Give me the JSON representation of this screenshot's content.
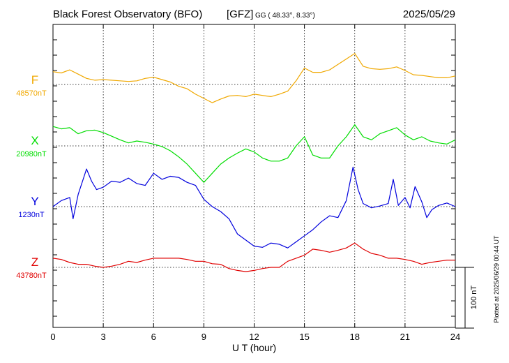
{
  "header": {
    "title": "Black Forest Observatory (BFO)",
    "agency": "[GFZ]",
    "coords": "GG ( 48.33°,   8.33°)",
    "date": "2025/05/29"
  },
  "side_note": "Plotted at 2025/06/29 00:44 UT",
  "chart_data": {
    "type": "line",
    "xlabel": "U T (hour)",
    "xlim": [
      0,
      24
    ],
    "x_ticks": [
      "0",
      "3",
      "6",
      "9",
      "12",
      "15",
      "18",
      "21",
      "24"
    ],
    "scale_bar_label": "100 nT",
    "grid": true,
    "series": [
      {
        "name": "F",
        "baseline_label": "48570nT",
        "baseline": 48570,
        "color": "#f0a800",
        "x": [
          0,
          0.5,
          1,
          1.5,
          2,
          2.5,
          3,
          3.5,
          4,
          4.5,
          5,
          5.5,
          6,
          6.5,
          7,
          7.5,
          8,
          8.5,
          9,
          9.5,
          10,
          10.5,
          11,
          11.5,
          12,
          12.5,
          13,
          13.5,
          14,
          14.5,
          15,
          15.5,
          16,
          16.5,
          17,
          17.5,
          18,
          18.5,
          19,
          19.5,
          20,
          20.5,
          21,
          21.5,
          22,
          22.5,
          23,
          23.5,
          24
        ],
        "values": [
          48591,
          48589,
          48594,
          48587,
          48580,
          48577,
          48578,
          48577,
          48576,
          48575,
          48576,
          48580,
          48582,
          48578,
          48574,
          48567,
          48563,
          48554,
          48547,
          48540,
          48546,
          48551,
          48552,
          48550,
          48554,
          48552,
          48550,
          48554,
          48559,
          48576,
          48597,
          48590,
          48590,
          48594,
          48603,
          48612,
          48621,
          48600,
          48596,
          48595,
          48596,
          48599,
          48593,
          48586,
          48585,
          48583,
          48581,
          48581,
          48584
        ]
      },
      {
        "name": "X",
        "baseline_label": "20980nT",
        "baseline": 20980,
        "color": "#00dd00",
        "x": [
          0,
          0.5,
          1,
          1.5,
          2,
          2.5,
          3,
          3.5,
          4,
          4.5,
          5,
          5.5,
          6,
          6.5,
          7,
          7.5,
          8,
          8.5,
          9,
          9.5,
          10,
          10.5,
          11,
          11.5,
          12,
          12.5,
          13,
          13.5,
          14,
          14.5,
          15,
          15.5,
          16,
          16.5,
          17,
          17.5,
          18,
          18.5,
          19,
          19.5,
          20,
          20.5,
          21,
          21.5,
          22,
          22.5,
          23,
          23.5,
          24
        ],
        "values": [
          21012,
          21008,
          21010,
          21000,
          21005,
          21006,
          21002,
          20996,
          20990,
          20985,
          20988,
          20986,
          20983,
          20979,
          20972,
          20962,
          20950,
          20935,
          20920,
          20935,
          20950,
          20960,
          20968,
          20975,
          20970,
          20960,
          20955,
          20955,
          20960,
          20980,
          20995,
          20965,
          20960,
          20960,
          20980,
          20995,
          21015,
          20995,
          20990,
          21000,
          21005,
          21010,
          20998,
          20990,
          20995,
          20988,
          20985,
          20983,
          20990
        ]
      },
      {
        "name": "Y",
        "baseline_label": "1230nT",
        "baseline": 1230,
        "color": "#0000dd",
        "x": [
          0,
          0.5,
          1,
          1.2,
          1.5,
          2,
          2.3,
          2.6,
          3,
          3.5,
          4,
          4.5,
          5,
          5.5,
          6,
          6.5,
          7,
          7.5,
          8,
          8.5,
          9,
          9.5,
          10,
          10.5,
          11,
          11.5,
          12,
          12.5,
          13,
          13.5,
          14,
          14.5,
          15,
          15.5,
          16,
          16.5,
          17,
          17.5,
          17.9,
          18.2,
          18.5,
          19,
          19.5,
          20,
          20.3,
          20.6,
          21,
          21.3,
          21.6,
          22,
          22.3,
          22.6,
          23,
          23.5,
          24
        ],
        "values": [
          1230,
          1240,
          1245,
          1210,
          1250,
          1292,
          1272,
          1258,
          1262,
          1272,
          1270,
          1277,
          1268,
          1265,
          1285,
          1275,
          1280,
          1278,
          1270,
          1265,
          1242,
          1230,
          1222,
          1210,
          1185,
          1175,
          1165,
          1163,
          1170,
          1168,
          1162,
          1172,
          1182,
          1192,
          1205,
          1215,
          1212,
          1240,
          1295,
          1258,
          1235,
          1228,
          1231,
          1235,
          1275,
          1232,
          1245,
          1228,
          1263,
          1238,
          1212,
          1225,
          1232,
          1236,
          1230
        ]
      },
      {
        "name": "Z",
        "baseline_label": "43780nT",
        "baseline": 43780,
        "color": "#e00000",
        "x": [
          0,
          0.5,
          1,
          1.5,
          2,
          2.5,
          3,
          3.5,
          4,
          4.5,
          5,
          5.5,
          6,
          6.5,
          7,
          7.5,
          8,
          8.5,
          9,
          9.5,
          10,
          10.5,
          11,
          11.5,
          12,
          12.5,
          13,
          13.5,
          14,
          14.5,
          15,
          15.5,
          16,
          16.5,
          17,
          17.5,
          18,
          18.5,
          19,
          19.5,
          20,
          20.5,
          21,
          21.5,
          22,
          22.5,
          23,
          23.5,
          24
        ],
        "values": [
          43795,
          43793,
          43788,
          43785,
          43785,
          43782,
          43780,
          43782,
          43785,
          43790,
          43788,
          43792,
          43795,
          43795,
          43795,
          43795,
          43793,
          43790,
          43790,
          43786,
          43785,
          43778,
          43775,
          43773,
          43775,
          43778,
          43780,
          43780,
          43790,
          43795,
          43800,
          43810,
          43808,
          43805,
          43808,
          43812,
          43820,
          43810,
          43803,
          43800,
          43795,
          43795,
          43793,
          43790,
          43785,
          43788,
          43790,
          43792,
          43792
        ]
      }
    ]
  }
}
